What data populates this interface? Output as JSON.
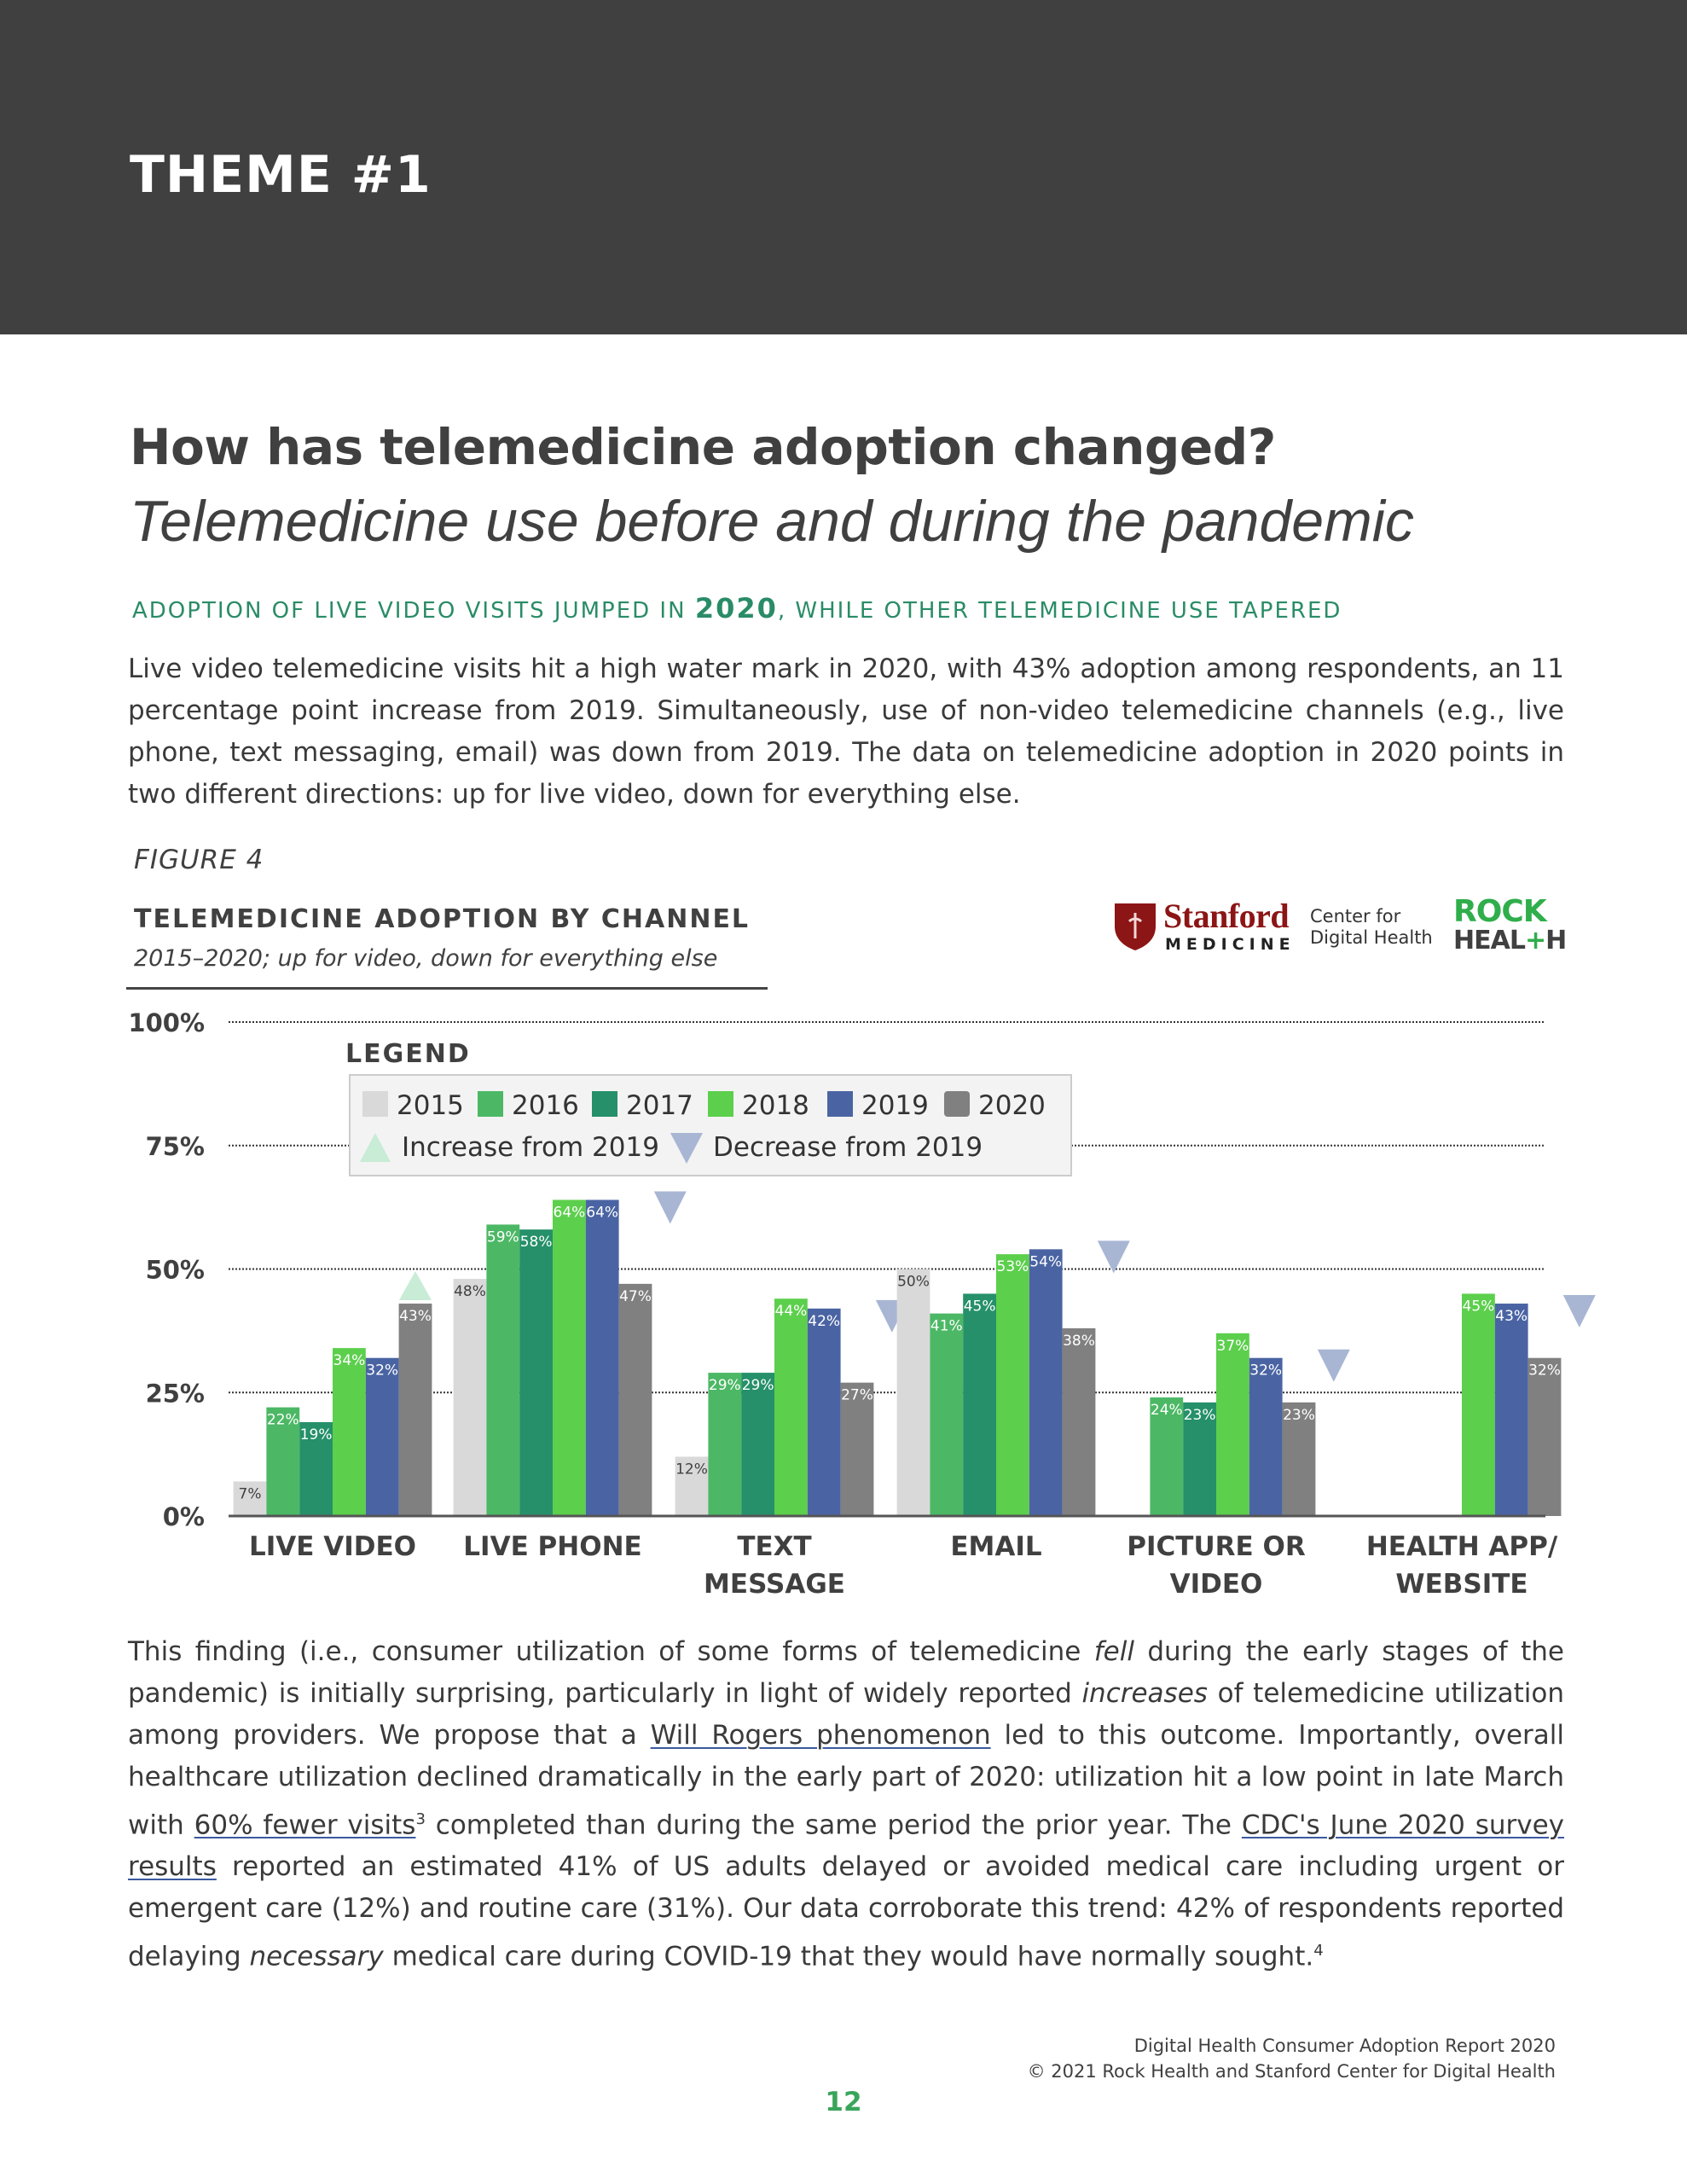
{
  "header": {
    "theme": "THEME #1"
  },
  "heading": {
    "title": "How has telemedicine adoption changed?",
    "subtitle": "Telemedicine use before and during the pandemic"
  },
  "kicker": {
    "part1": "ADOPTION OF LIVE VIDEO VISITS JUMPED IN ",
    "year": "2020",
    "part2": ", WHILE OTHER TELEMEDICINE USE TAPERED"
  },
  "intro_paragraph": "Live video telemedicine visits hit a high water mark in 2020, with 43% adoption among respondents, an 11 percentage point increase from 2019. Simultaneously, use of non-video telemedicine channels (e.g., live phone, text messaging, email) was down from 2019. The data on telemedicine adoption in 2020 points in two different directions: up for live video, down for everything else.",
  "figure": {
    "label": "FIGURE 4",
    "title": "TELEMEDICINE ADOPTION BY CHANNEL",
    "subtitle": "2015–2020; up for video, down for everything else"
  },
  "logos": {
    "stanford": "Stanford",
    "medicine": "MEDICINE",
    "cdh_line1": "Center for",
    "cdh_line2": "Digital Health",
    "rock": "ROCK",
    "heal": "HEAL",
    "plus": "+",
    "h": "H"
  },
  "chart_data": {
    "type": "bar",
    "title": "TELEMEDICINE ADOPTION BY CHANNEL",
    "subtitle": "2015–2020; up for video, down for everything else",
    "ylim": [
      0,
      100
    ],
    "yticks": [
      0,
      25,
      50,
      75,
      100
    ],
    "ytick_labels": [
      "0%",
      "25%",
      "50%",
      "75%",
      "100%"
    ],
    "grid": true,
    "legend_title": "LEGEND",
    "legend_position": "top-center",
    "categories": [
      [
        "LIVE VIDEO"
      ],
      [
        "LIVE PHONE"
      ],
      [
        "TEXT",
        "MESSAGE"
      ],
      [
        "EMAIL"
      ],
      [
        "PICTURE OR",
        "VIDEO"
      ],
      [
        "HEALTH APP/",
        "WEBSITE"
      ]
    ],
    "series": [
      {
        "name": "2015",
        "color": "#d9d9d9",
        "label_color": "#404040",
        "values": [
          7,
          48,
          12,
          50,
          null,
          null
        ]
      },
      {
        "name": "2016",
        "color": "#4cb865",
        "label_color": "#ffffff",
        "values": [
          22,
          59,
          29,
          41,
          24,
          null
        ]
      },
      {
        "name": "2017",
        "color": "#25906a",
        "label_color": "#ffffff",
        "values": [
          19,
          58,
          29,
          45,
          23,
          null
        ]
      },
      {
        "name": "2018",
        "color": "#5ccf4c",
        "label_color": "#ffffff",
        "values": [
          34,
          64,
          44,
          53,
          37,
          45
        ]
      },
      {
        "name": "2019",
        "color": "#4a64a3",
        "label_color": "#ffffff",
        "values": [
          32,
          64,
          42,
          54,
          32,
          43
        ]
      },
      {
        "name": "2020",
        "color": "#808080",
        "label_color": "#ffffff",
        "values": [
          43,
          47,
          27,
          38,
          23,
          32
        ]
      }
    ],
    "change_markers": [
      "increase",
      "decrease",
      "decrease",
      "decrease",
      "decrease",
      "decrease"
    ],
    "marker_legend": {
      "increase": {
        "label": "Increase from 2019",
        "color": "#c8ecd6"
      },
      "decrease": {
        "label": "Decrease from 2019",
        "color": "#a8b6d4"
      }
    }
  },
  "finding_paragraph": {
    "t1": "This finding (i.e., consumer utilization of some forms of telemedicine ",
    "em1": "fell",
    "t2": " during the early stages of the pandemic) is initially surprising, particularly in light of widely reported ",
    "em2": "increases",
    "t3": " of telemedicine utilization among providers. We propose that a ",
    "link1": "Will Rogers phenomenon",
    "t4": " led to this outcome. Importantly, overall healthcare utilization declined dramatically in the early part of 2020: utilization hit a low point in late March with ",
    "link2": "60% fewer visits",
    "sup1": "3",
    "t5": " completed than during the same period the prior year. The ",
    "link3": "CDC's June 2020 survey results",
    "t6": " reported an estimated 41% of US adults delayed or avoided medical care including urgent or emergent care (12%) and routine care (31%). Our data corroborate this trend: 42% of respondents reported delaying ",
    "em3": "necessary",
    "t7": " medical care during COVID-19 that they would have normally sought.",
    "sup2": "4"
  },
  "footer": {
    "report": "Digital Health Consumer Adoption Report 2020",
    "copyright": "© 2021 Rock Health and Stanford Center for Digital Health",
    "page_number": "12"
  }
}
